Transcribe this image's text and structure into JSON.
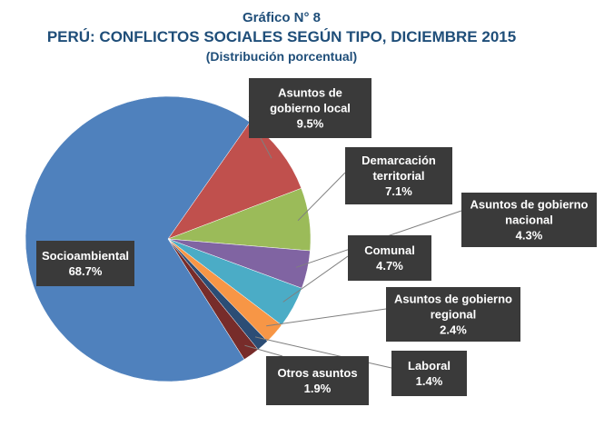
{
  "header": {
    "figure_number": "Gráfico N° 8",
    "title": "PERÚ: CONFLICTOS SOCIALES SEGÚN TIPO, DICIEMBRE 2015",
    "subtitle": "(Distribución porcentual)"
  },
  "chart_data": {
    "type": "pie",
    "title": "PERÚ: CONFLICTOS SOCIALES SEGÚN TIPO, DICIEMBRE 2015",
    "subtitle": "(Distribución porcentual)",
    "unit": "%",
    "slices": [
      {
        "label": [
          "Asuntos de",
          "gobierno local"
        ],
        "value": 9.5,
        "value_text": "9.5%",
        "color": "#c0504d"
      },
      {
        "label": [
          "Demarcación",
          "territorial"
        ],
        "value": 7.1,
        "value_text": "7.1%",
        "color": "#9bbb59"
      },
      {
        "label": [
          "Asuntos de gobierno",
          "nacional"
        ],
        "value": 4.3,
        "value_text": "4.3%",
        "color": "#8064a2"
      },
      {
        "label": [
          "Comunal"
        ],
        "value": 4.7,
        "value_text": "4.7%",
        "color": "#4bacc6"
      },
      {
        "label": [
          "Asuntos de gobierno",
          "regional"
        ],
        "value": 2.4,
        "value_text": "2.4%",
        "color": "#f79646"
      },
      {
        "label": [
          "Laboral"
        ],
        "value": 1.4,
        "value_text": "1.4%",
        "color": "#2c4d75"
      },
      {
        "label": [
          "Otros asuntos"
        ],
        "value": 1.9,
        "value_text": "1.9%",
        "color": "#772c2a"
      },
      {
        "label": [
          "Socioambiental"
        ],
        "value": 68.7,
        "value_text": "68.7%",
        "color": "#4f81bd"
      }
    ],
    "label_box_color": "#3a3a3a",
    "leader_line_color": "#7f7f7f"
  }
}
